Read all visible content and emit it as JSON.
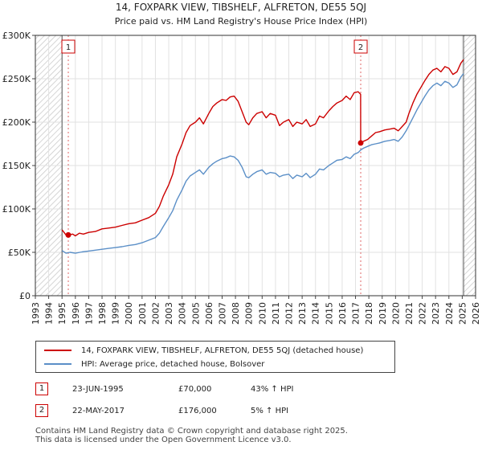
{
  "chart_data": {
    "type": "line",
    "title": "14, FOXPARK VIEW, TIBSHELF, ALFRETON, DE55 5QJ",
    "subtitle": "Price paid vs. HM Land Registry's House Price Index (HPI)",
    "xlim": [
      1993,
      2026
    ],
    "ylim": [
      0,
      300000
    ],
    "x_ticks": [
      "1993",
      "1994",
      "1995",
      "1996",
      "1997",
      "1998",
      "1999",
      "2000",
      "2001",
      "2002",
      "2003",
      "2004",
      "2005",
      "2006",
      "2007",
      "2008",
      "2009",
      "2010",
      "2011",
      "2012",
      "2013",
      "2014",
      "2015",
      "2016",
      "2017",
      "2018",
      "2019",
      "2020",
      "2021",
      "2022",
      "2023",
      "2024",
      "2025",
      "2026"
    ],
    "y_ticks": [
      {
        "value": 0,
        "label": "£0"
      },
      {
        "value": 50000,
        "label": "£50K"
      },
      {
        "value": 100000,
        "label": "£100K"
      },
      {
        "value": 150000,
        "label": "£150K"
      },
      {
        "value": 200000,
        "label": "£200K"
      },
      {
        "value": 250000,
        "label": "£250K"
      },
      {
        "value": 300000,
        "label": "£300K"
      }
    ],
    "grid": true,
    "hatch_before": 1995.0,
    "hatch_after": 2025.1,
    "series": [
      {
        "name": "14, FOXPARK VIEW, TIBSHELF, ALFRETON, DE55 5QJ (detached house)",
        "color": "#cc0000",
        "points": [
          [
            1995.0,
            76000
          ],
          [
            1995.3,
            70000
          ],
          [
            1995.47,
            70000
          ],
          [
            1995.8,
            71000
          ],
          [
            1996.0,
            69000
          ],
          [
            1996.3,
            72000
          ],
          [
            1996.6,
            71000
          ],
          [
            1997.0,
            73000
          ],
          [
            1997.5,
            74000
          ],
          [
            1998.0,
            77000
          ],
          [
            1998.5,
            78000
          ],
          [
            1999.0,
            79000
          ],
          [
            1999.5,
            81000
          ],
          [
            2000.0,
            83000
          ],
          [
            2000.5,
            84000
          ],
          [
            2001.0,
            87000
          ],
          [
            2001.5,
            90000
          ],
          [
            2002.0,
            95000
          ],
          [
            2002.3,
            103000
          ],
          [
            2002.6,
            115000
          ],
          [
            2003.0,
            128000
          ],
          [
            2003.3,
            140000
          ],
          [
            2003.6,
            160000
          ],
          [
            2004.0,
            175000
          ],
          [
            2004.3,
            188000
          ],
          [
            2004.6,
            196000
          ],
          [
            2005.0,
            200000
          ],
          [
            2005.3,
            205000
          ],
          [
            2005.6,
            198000
          ],
          [
            2006.0,
            210000
          ],
          [
            2006.3,
            218000
          ],
          [
            2006.6,
            222000
          ],
          [
            2007.0,
            226000
          ],
          [
            2007.3,
            225000
          ],
          [
            2007.6,
            229000
          ],
          [
            2007.9,
            230000
          ],
          [
            2008.2,
            224000
          ],
          [
            2008.5,
            212000
          ],
          [
            2008.8,
            200000
          ],
          [
            2009.0,
            197000
          ],
          [
            2009.3,
            205000
          ],
          [
            2009.6,
            210000
          ],
          [
            2010.0,
            212000
          ],
          [
            2010.3,
            205000
          ],
          [
            2010.6,
            210000
          ],
          [
            2011.0,
            208000
          ],
          [
            2011.3,
            196000
          ],
          [
            2011.6,
            200000
          ],
          [
            2012.0,
            203000
          ],
          [
            2012.3,
            195000
          ],
          [
            2012.6,
            200000
          ],
          [
            2013.0,
            198000
          ],
          [
            2013.3,
            203000
          ],
          [
            2013.6,
            195000
          ],
          [
            2014.0,
            198000
          ],
          [
            2014.3,
            207000
          ],
          [
            2014.6,
            205000
          ],
          [
            2015.0,
            213000
          ],
          [
            2015.3,
            218000
          ],
          [
            2015.6,
            222000
          ],
          [
            2016.0,
            225000
          ],
          [
            2016.3,
            230000
          ],
          [
            2016.6,
            226000
          ],
          [
            2016.9,
            234000
          ],
          [
            2017.2,
            235000
          ],
          [
            2017.38,
            232000
          ],
          [
            2017.39,
            176000
          ],
          [
            2017.6,
            178000
          ],
          [
            2017.9,
            180000
          ],
          [
            2018.2,
            184000
          ],
          [
            2018.5,
            188000
          ],
          [
            2018.8,
            189000
          ],
          [
            2019.2,
            191000
          ],
          [
            2019.6,
            192000
          ],
          [
            2019.9,
            193000
          ],
          [
            2020.2,
            190000
          ],
          [
            2020.5,
            195000
          ],
          [
            2020.8,
            200000
          ],
          [
            2021.0,
            210000
          ],
          [
            2021.3,
            222000
          ],
          [
            2021.6,
            232000
          ],
          [
            2021.9,
            240000
          ],
          [
            2022.2,
            248000
          ],
          [
            2022.5,
            255000
          ],
          [
            2022.8,
            260000
          ],
          [
            2023.1,
            262000
          ],
          [
            2023.4,
            258000
          ],
          [
            2023.7,
            264000
          ],
          [
            2024.0,
            262000
          ],
          [
            2024.3,
            255000
          ],
          [
            2024.6,
            258000
          ],
          [
            2024.9,
            268000
          ],
          [
            2025.1,
            272000
          ]
        ]
      },
      {
        "name": "HPI: Average price, detached house, Bolsover",
        "color": "#5b8fc7",
        "points": [
          [
            1995.0,
            52000
          ],
          [
            1995.3,
            49000
          ],
          [
            1995.6,
            50000
          ],
          [
            1996.0,
            49000
          ],
          [
            1996.5,
            50500
          ],
          [
            1997.0,
            51500
          ],
          [
            1997.5,
            52500
          ],
          [
            1998.0,
            53500
          ],
          [
            1998.5,
            54500
          ],
          [
            1999.0,
            55500
          ],
          [
            1999.5,
            56500
          ],
          [
            2000.0,
            58000
          ],
          [
            2000.5,
            59000
          ],
          [
            2001.0,
            61000
          ],
          [
            2001.5,
            64000
          ],
          [
            2002.0,
            67000
          ],
          [
            2002.3,
            72000
          ],
          [
            2002.6,
            80000
          ],
          [
            2003.0,
            90000
          ],
          [
            2003.3,
            98000
          ],
          [
            2003.6,
            110000
          ],
          [
            2004.0,
            122000
          ],
          [
            2004.3,
            132000
          ],
          [
            2004.6,
            138000
          ],
          [
            2005.0,
            142000
          ],
          [
            2005.3,
            145000
          ],
          [
            2005.6,
            140000
          ],
          [
            2006.0,
            148000
          ],
          [
            2006.3,
            152000
          ],
          [
            2006.6,
            155000
          ],
          [
            2007.0,
            158000
          ],
          [
            2007.3,
            159000
          ],
          [
            2007.6,
            161000
          ],
          [
            2007.9,
            160000
          ],
          [
            2008.2,
            156000
          ],
          [
            2008.5,
            148000
          ],
          [
            2008.8,
            137000
          ],
          [
            2009.0,
            136000
          ],
          [
            2009.3,
            140000
          ],
          [
            2009.6,
            143000
          ],
          [
            2010.0,
            145000
          ],
          [
            2010.3,
            140000
          ],
          [
            2010.6,
            142000
          ],
          [
            2011.0,
            141000
          ],
          [
            2011.3,
            137000
          ],
          [
            2011.6,
            139000
          ],
          [
            2012.0,
            140000
          ],
          [
            2012.3,
            135000
          ],
          [
            2012.6,
            139000
          ],
          [
            2013.0,
            137000
          ],
          [
            2013.3,
            141000
          ],
          [
            2013.6,
            136000
          ],
          [
            2014.0,
            140000
          ],
          [
            2014.3,
            146000
          ],
          [
            2014.6,
            145000
          ],
          [
            2015.0,
            150000
          ],
          [
            2015.3,
            153000
          ],
          [
            2015.6,
            156000
          ],
          [
            2016.0,
            157000
          ],
          [
            2016.3,
            160000
          ],
          [
            2016.6,
            158000
          ],
          [
            2016.9,
            163000
          ],
          [
            2017.2,
            165000
          ],
          [
            2017.39,
            168000
          ],
          [
            2017.6,
            170000
          ],
          [
            2017.9,
            172000
          ],
          [
            2018.2,
            174000
          ],
          [
            2018.5,
            175000
          ],
          [
            2018.8,
            176000
          ],
          [
            2019.2,
            178000
          ],
          [
            2019.6,
            179000
          ],
          [
            2019.9,
            180000
          ],
          [
            2020.2,
            178000
          ],
          [
            2020.5,
            183000
          ],
          [
            2020.8,
            190000
          ],
          [
            2021.0,
            196000
          ],
          [
            2021.3,
            205000
          ],
          [
            2021.6,
            214000
          ],
          [
            2021.9,
            222000
          ],
          [
            2022.2,
            230000
          ],
          [
            2022.5,
            237000
          ],
          [
            2022.8,
            242000
          ],
          [
            2023.1,
            245000
          ],
          [
            2023.4,
            242000
          ],
          [
            2023.7,
            247000
          ],
          [
            2024.0,
            245000
          ],
          [
            2024.3,
            240000
          ],
          [
            2024.6,
            243000
          ],
          [
            2024.9,
            252000
          ],
          [
            2025.1,
            256000
          ]
        ]
      }
    ],
    "markers": [
      {
        "label": "1",
        "x": 1995.47,
        "y": 70000
      },
      {
        "label": "2",
        "x": 2017.39,
        "y": 176000
      }
    ]
  },
  "legend": {
    "property_label": "14, FOXPARK VIEW, TIBSHELF, ALFRETON, DE55 5QJ (detached house)",
    "hpi_label": "HPI: Average price, detached house, Bolsover",
    "property_color": "#cc0000",
    "hpi_color": "#5b8fc7"
  },
  "transactions": [
    {
      "num": "1",
      "date": "23-JUN-1995",
      "price": "£70,000",
      "hpi": "43% ↑ HPI"
    },
    {
      "num": "2",
      "date": "22-MAY-2017",
      "price": "£176,000",
      "hpi": "5% ↑ HPI"
    }
  ],
  "footer": {
    "line1": "Contains HM Land Registry data © Crown copyright and database right 2025.",
    "line2": "This data is licensed under the Open Government Licence v3.0."
  }
}
